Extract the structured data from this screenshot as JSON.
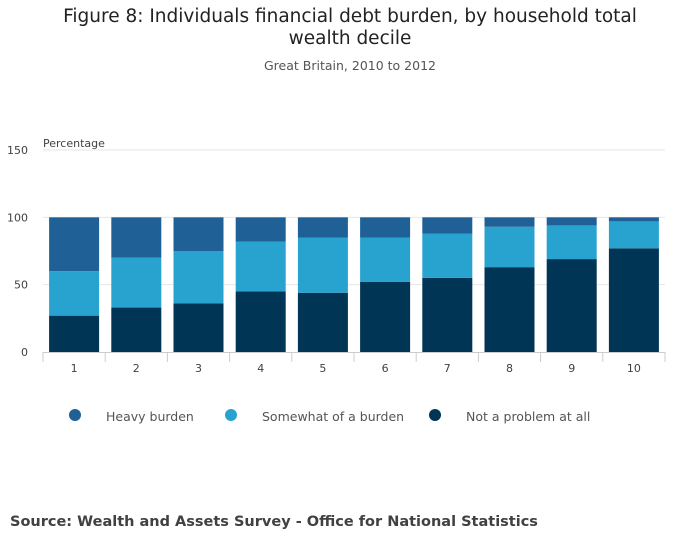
{
  "title": "Figure 8: Individuals financial debt burden, by household total wealth decile",
  "subtitle": "Great Britain, 2010 to 2012",
  "source": "Source: Wealth and Assets Survey - Office for National Statistics",
  "colors": {
    "heavy": "#1f6097",
    "somewhat": "#28a3d0",
    "none": "#003556",
    "grid": "#e6e6e6",
    "axis": "#cccccc"
  },
  "chart_data": {
    "type": "bar",
    "stacked": true,
    "ylabel": "Percentage",
    "xlabel": "",
    "ylim": [
      0,
      150
    ],
    "yticks": [
      0,
      50,
      100,
      150
    ],
    "grid": true,
    "legend": "bottom",
    "categories": [
      "1",
      "2",
      "3",
      "4",
      "5",
      "6",
      "7",
      "8",
      "9",
      "10"
    ],
    "series": [
      {
        "name": "Not a problem at all",
        "color": "#003556",
        "values": [
          27,
          33,
          36,
          45,
          44,
          52,
          55,
          63,
          69,
          77
        ]
      },
      {
        "name": "Somewhat of a burden",
        "color": "#28a3d0",
        "values": [
          33,
          37,
          39,
          37,
          41,
          33,
          33,
          30,
          25,
          20
        ]
      },
      {
        "name": "Heavy burden",
        "color": "#1f6097",
        "values": [
          40,
          30,
          25,
          18,
          15,
          15,
          12,
          7,
          6,
          3
        ]
      }
    ]
  }
}
